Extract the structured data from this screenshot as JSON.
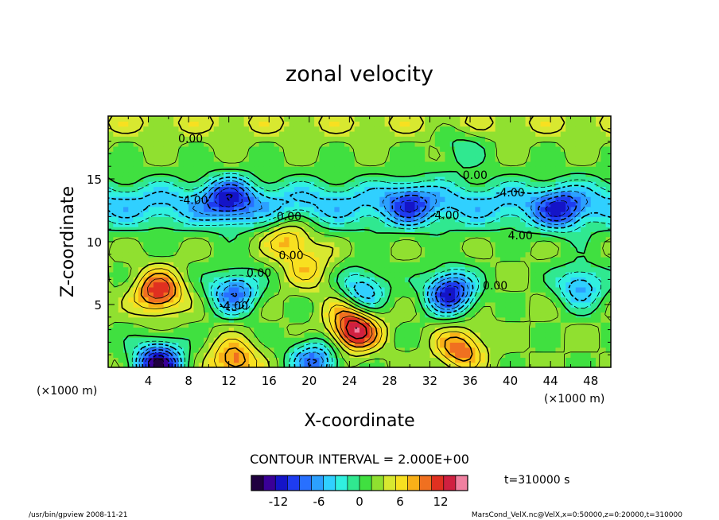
{
  "chart_data": {
    "type": "heatmap",
    "title": "zonal velocity",
    "xlabel": "X-coordinate",
    "ylabel": "Z-coordinate",
    "x_unit_label": "(×1000 m)",
    "y_unit_label": "(×1000 m)",
    "xlim": [
      0,
      50
    ],
    "ylim": [
      0,
      20
    ],
    "x_ticks": [
      4,
      8,
      12,
      16,
      20,
      24,
      28,
      32,
      36,
      40,
      44,
      48
    ],
    "y_ticks": [
      5,
      10,
      15
    ],
    "contour_interval_text": "CONTOUR INTERVAL = 2.000E+00",
    "time_text": "t=310000 s",
    "colorbar": {
      "range": [
        -16,
        16
      ],
      "ticks": [
        -12,
        -6,
        0,
        6,
        12
      ],
      "colors": [
        "#200040",
        "#3a0098",
        "#1414c8",
        "#1e3cf0",
        "#2870ff",
        "#2ca0ff",
        "#30d0ff",
        "#30f0e0",
        "#30e890",
        "#40e040",
        "#90e030",
        "#d8e830",
        "#f8e020",
        "#f8b018",
        "#f07020",
        "#e03020",
        "#d02040",
        "#f080a0"
      ]
    },
    "contour_labels": [
      {
        "text": "0.00",
        "x": 8.2,
        "z": 17.9
      },
      {
        "text": "0.00",
        "x": 36.5,
        "z": 15.0
      },
      {
        "text": "-4.00",
        "x": 8.5,
        "z": 13.0
      },
      {
        "text": "-4.00",
        "x": 40.0,
        "z": 13.6
      },
      {
        "text": "-4.00",
        "x": 33.5,
        "z": 11.8
      },
      {
        "text": "0.00",
        "x": 18.0,
        "z": 11.7
      },
      {
        "text": "4.00",
        "x": 41.0,
        "z": 10.2
      },
      {
        "text": "0.00",
        "x": 18.2,
        "z": 8.6
      },
      {
        "text": "0.00",
        "x": 15.0,
        "z": 7.2
      },
      {
        "text": "0.00",
        "x": 38.5,
        "z": 6.2
      },
      {
        "text": "-4.00",
        "x": 12.5,
        "z": 4.6
      }
    ],
    "features": [
      {
        "x": 5,
        "z": 6,
        "value": 12
      },
      {
        "x": 12.5,
        "z": 6,
        "value": -8
      },
      {
        "x": 20,
        "z": 8,
        "value": 6
      },
      {
        "x": 24,
        "z": 5.5,
        "value": 8
      },
      {
        "x": 24.5,
        "z": 3,
        "value": 14
      },
      {
        "x": 25,
        "z": 6,
        "value": -10
      },
      {
        "x": 34,
        "z": 6,
        "value": -12
      },
      {
        "x": 35,
        "z": 1.5,
        "value": 10
      },
      {
        "x": 47,
        "z": 6.5,
        "value": -6
      },
      {
        "x": 5,
        "z": 0.3,
        "value": -14
      },
      {
        "x": 12.5,
        "z": 0.5,
        "value": 10
      },
      {
        "x": 20.5,
        "z": 0.5,
        "value": -8
      },
      {
        "x": 30,
        "z": 2.5,
        "value": 2
      },
      {
        "x": 18,
        "z": 10.3,
        "value": 8
      },
      {
        "x": 12,
        "z": 13.5,
        "value": -6
      },
      {
        "x": 30,
        "z": 13,
        "value": -4
      },
      {
        "x": 45,
        "z": 12.5,
        "value": -5
      },
      {
        "x": 10,
        "z": 19.5,
        "value": 2
      },
      {
        "x": 35,
        "z": 17.5,
        "value": -1
      }
    ]
  },
  "footer": {
    "left": "/usr/bin/gpview   2008-11-21",
    "right": "MarsCond_VelX.nc@VelX,x=0:50000,z=0:20000,t=310000"
  }
}
